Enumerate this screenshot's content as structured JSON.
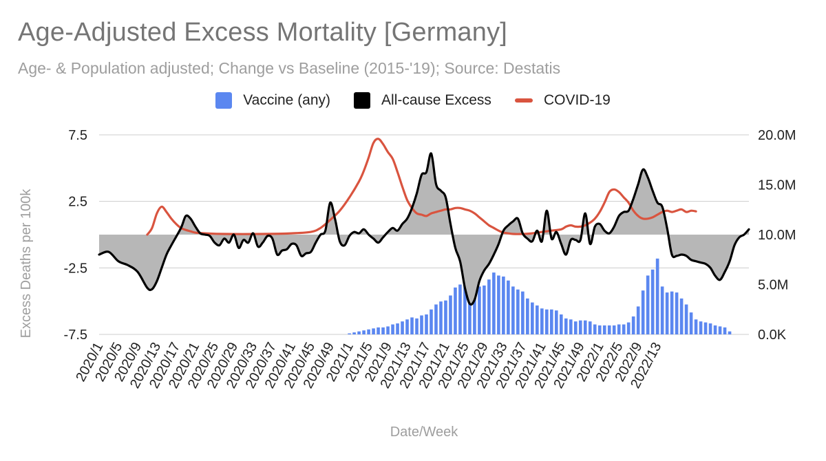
{
  "title": "Age-Adjusted Excess Mortality [Germany]",
  "subtitle": "Age- & Population adjusted; Change vs Baseline (2015-'19); Source: Destatis",
  "legend": [
    {
      "label": "Vaccine (any)",
      "color": "#5b87f0",
      "kind": "box"
    },
    {
      "label": "All-cause Excess",
      "color": "#000000",
      "kind": "box"
    },
    {
      "label": "COVID-19",
      "color": "#d9543f",
      "kind": "line"
    }
  ],
  "chart_data": {
    "type": "combo",
    "title": "Age-Adjusted Excess Mortality [Germany]",
    "xlabel": "Date/Week",
    "ylabel_left": "Excess Deaths per 100k",
    "ylabel_right": "",
    "ylim_left": [
      -7.5,
      7.5
    ],
    "ylim_right": [
      0,
      20000000
    ],
    "yticks_left": [
      "7.5",
      "2.5",
      "-2.5",
      "-7.5"
    ],
    "yticks_right": [
      "20.0M",
      "15.0M",
      "10.0M",
      "5.0M",
      "0.0K"
    ],
    "weeks": 118,
    "xtick_labels": [
      "2020/1",
      "2020/5",
      "2020/9",
      "2020/13",
      "2020/17",
      "2020/21",
      "2020/25",
      "2020/29",
      "2020/33",
      "2020/37",
      "2020/41",
      "2020/45",
      "2020/49",
      "2021/1",
      "2021/5",
      "2021/9",
      "2021/13",
      "2021/17",
      "2021/21",
      "2021/25",
      "2021/29",
      "2021/33",
      "2021/37",
      "2021/41",
      "2021/45",
      "2021/49",
      "2022/1",
      "2022/5",
      "2022/9",
      "2022/13"
    ],
    "series": [
      {
        "name": "All-cause Excess",
        "type": "area-line",
        "axis": "left",
        "color": "#000000",
        "fill": "#b7b7b7",
        "points": [
          [
            0,
            -1.5
          ],
          [
            2,
            -1.3
          ],
          [
            4,
            -2
          ],
          [
            6,
            -2.3
          ],
          [
            8,
            -2.8
          ],
          [
            10,
            -4
          ],
          [
            11,
            -4.1
          ],
          [
            12,
            -3.5
          ],
          [
            13,
            -2.5
          ],
          [
            14,
            -1.5
          ],
          [
            15,
            -0.8
          ],
          [
            17,
            0.5
          ],
          [
            18,
            1.4
          ],
          [
            19,
            1.2
          ],
          [
            20,
            0.6
          ],
          [
            21,
            0.1
          ],
          [
            22,
            0
          ],
          [
            23,
            -0.1
          ],
          [
            24,
            -0.6
          ],
          [
            25,
            -0.8
          ],
          [
            26,
            -0.3
          ],
          [
            27,
            -0.6
          ],
          [
            28,
            0
          ],
          [
            29,
            -1
          ],
          [
            30,
            -0.4
          ],
          [
            31,
            -0.6
          ],
          [
            32,
            0.1
          ],
          [
            33,
            -0.9
          ],
          [
            34,
            -0.6
          ],
          [
            35,
            -0.1
          ],
          [
            36,
            -0.3
          ],
          [
            37,
            -1.5
          ],
          [
            38,
            -1.2
          ],
          [
            39,
            -1.1
          ],
          [
            40,
            -0.7
          ],
          [
            41,
            -0.8
          ],
          [
            42,
            -1.6
          ],
          [
            43,
            -1.4
          ],
          [
            44,
            -1.3
          ],
          [
            45,
            -0.6
          ],
          [
            46,
            0
          ],
          [
            47,
            0.3
          ],
          [
            48,
            2.4
          ],
          [
            49,
            1.2
          ],
          [
            50,
            -0.5
          ],
          [
            51,
            -0.8
          ],
          [
            52,
            -0.1
          ],
          [
            53,
            0.2
          ],
          [
            54,
            0.1
          ],
          [
            55,
            0.4
          ],
          [
            56,
            0
          ],
          [
            57,
            -0.3
          ],
          [
            58,
            -0.6
          ],
          [
            59,
            -0.2
          ],
          [
            60,
            0.2
          ],
          [
            61,
            0.5
          ],
          [
            62,
            0.3
          ],
          [
            63,
            0.8
          ],
          [
            64,
            1.2
          ],
          [
            65,
            2
          ],
          [
            66,
            3.1
          ],
          [
            67,
            4.5
          ],
          [
            68,
            4.7
          ],
          [
            69,
            6.1
          ],
          [
            70,
            3.8
          ],
          [
            71,
            3.3
          ],
          [
            72,
            2.8
          ],
          [
            73,
            0.8
          ],
          [
            74,
            -1
          ],
          [
            75,
            -2
          ],
          [
            76,
            -4
          ],
          [
            77,
            -5.2
          ],
          [
            78,
            -4.9
          ],
          [
            79,
            -3.5
          ],
          [
            80,
            -2.7
          ],
          [
            81,
            -2.2
          ],
          [
            82,
            -1.5
          ],
          [
            83,
            -0.7
          ],
          [
            84,
            0.3
          ],
          [
            85,
            0.7
          ],
          [
            86,
            1
          ],
          [
            87,
            1.2
          ],
          [
            88,
            0.1
          ],
          [
            89,
            -0.3
          ],
          [
            90,
            -0.5
          ],
          [
            91,
            0.3
          ],
          [
            92,
            -0.5
          ],
          [
            93,
            1.8
          ],
          [
            94,
            -0.3
          ],
          [
            95,
            0.2
          ],
          [
            96,
            -0.7
          ],
          [
            97,
            -1.5
          ],
          [
            98,
            -0.4
          ],
          [
            99,
            -0.4
          ],
          [
            100,
            -0.4
          ],
          [
            101,
            1.6
          ],
          [
            102,
            -0.7
          ],
          [
            103,
            0.6
          ],
          [
            104,
            0.8
          ],
          [
            105,
            0.3
          ],
          [
            106,
            0.1
          ],
          [
            107,
            0.6
          ],
          [
            108,
            1.4
          ],
          [
            109,
            1.7
          ],
          [
            110,
            1.8
          ],
          [
            111,
            2.7
          ],
          [
            112,
            3.8
          ],
          [
            113,
            4.9
          ],
          [
            114,
            4.3
          ],
          [
            115,
            3.3
          ],
          [
            116,
            2.4
          ],
          [
            117,
            2.1
          ],
          [
            118,
            0.5
          ],
          [
            119,
            -1.5
          ],
          [
            120,
            -1.6
          ],
          [
            121,
            -1.5
          ],
          [
            122,
            -1.6
          ],
          [
            123,
            -1.9
          ],
          [
            124,
            -2
          ],
          [
            125,
            -2.1
          ],
          [
            126,
            -2.2
          ],
          [
            127,
            -2.5
          ],
          [
            128,
            -3.1
          ],
          [
            129,
            -3.4
          ],
          [
            130,
            -2.8
          ],
          [
            131,
            -2
          ],
          [
            132,
            -0.8
          ],
          [
            133,
            -0.2
          ],
          [
            134,
            0
          ],
          [
            135,
            0.4
          ]
        ]
      },
      {
        "name": "COVID-19",
        "type": "line",
        "axis": "left",
        "color": "#d9543f",
        "points": [
          [
            10,
            0
          ],
          [
            11,
            0.5
          ],
          [
            12,
            1.6
          ],
          [
            13,
            2.1
          ],
          [
            14,
            1.7
          ],
          [
            15,
            1.2
          ],
          [
            16,
            0.8
          ],
          [
            17,
            0.5
          ],
          [
            18,
            0.35
          ],
          [
            19,
            0.25
          ],
          [
            20,
            0.15
          ],
          [
            22,
            0.1
          ],
          [
            26,
            0.05
          ],
          [
            34,
            0.05
          ],
          [
            40,
            0.1
          ],
          [
            44,
            0.2
          ],
          [
            46,
            0.5
          ],
          [
            48,
            1.1
          ],
          [
            50,
            1.8
          ],
          [
            52,
            2.8
          ],
          [
            54,
            4
          ],
          [
            55,
            4.8
          ],
          [
            56,
            5.8
          ],
          [
            57,
            6.9
          ],
          [
            58,
            7.2
          ],
          [
            59,
            6.8
          ],
          [
            60,
            6.2
          ],
          [
            61,
            5.7
          ],
          [
            62,
            4.7
          ],
          [
            63,
            3.6
          ],
          [
            64,
            2.6
          ],
          [
            65,
            2
          ],
          [
            66,
            1.6
          ],
          [
            67,
            1.5
          ],
          [
            68,
            1.4
          ],
          [
            69,
            1.6
          ],
          [
            70,
            1.7
          ],
          [
            71,
            1.8
          ],
          [
            72,
            1.9
          ],
          [
            73,
            1.9
          ],
          [
            74,
            2
          ],
          [
            75,
            2
          ],
          [
            76,
            1.9
          ],
          [
            77,
            1.8
          ],
          [
            78,
            1.6
          ],
          [
            79,
            1.3
          ],
          [
            80,
            1
          ],
          [
            81,
            0.7
          ],
          [
            82,
            0.5
          ],
          [
            83,
            0.3
          ],
          [
            84,
            0.15
          ],
          [
            85,
            0.1
          ],
          [
            86,
            0.05
          ],
          [
            88,
            0.05
          ],
          [
            90,
            0.1
          ],
          [
            92,
            0.2
          ],
          [
            94,
            0.3
          ],
          [
            96,
            0.4
          ],
          [
            97,
            0.6
          ],
          [
            98,
            0.7
          ],
          [
            99,
            0.6
          ],
          [
            100,
            0.6
          ],
          [
            101,
            0.7
          ],
          [
            102,
            0.9
          ],
          [
            103,
            1.2
          ],
          [
            104,
            1.7
          ],
          [
            105,
            2.4
          ],
          [
            106,
            3.2
          ],
          [
            107,
            3.4
          ],
          [
            108,
            3.2
          ],
          [
            109,
            2.8
          ],
          [
            110,
            2.4
          ],
          [
            111,
            1.8
          ],
          [
            112,
            1.4
          ],
          [
            113,
            1.2
          ],
          [
            114,
            1.2
          ],
          [
            115,
            1.3
          ],
          [
            116,
            1.5
          ],
          [
            117,
            1.7
          ],
          [
            118,
            1.8
          ],
          [
            119,
            1.7
          ],
          [
            120,
            1.8
          ],
          [
            121,
            1.9
          ],
          [
            122,
            1.7
          ],
          [
            123,
            1.8
          ],
          [
            124,
            1.75
          ]
        ]
      },
      {
        "name": "Vaccine (any)",
        "type": "bar",
        "axis": "right",
        "color": "#5b87f0",
        "start_week": 52,
        "values": [
          100000,
          200000,
          300000,
          400000,
          500000,
          600000,
          700000,
          700000,
          800000,
          1000000,
          1100000,
          1300000,
          1500000,
          1700000,
          1600000,
          1900000,
          2000000,
          2500000,
          3000000,
          3300000,
          3400000,
          3900000,
          4700000,
          5000000,
          5000000,
          5100000,
          5000000,
          4800000,
          4900000,
          5500000,
          6200000,
          5900000,
          5800000,
          5400000,
          4800000,
          4500000,
          4300000,
          3600000,
          3200000,
          2900000,
          2600000,
          2500000,
          2500000,
          2400000,
          2000000,
          1600000,
          1500000,
          1300000,
          1400000,
          1400000,
          1300000,
          1000000,
          900000,
          900000,
          900000,
          900000,
          1000000,
          1000000,
          1200000,
          1800000,
          2800000,
          4400000,
          5900000,
          6500000,
          7600000,
          4800000,
          4200000,
          4300000,
          4200000,
          3600000,
          3000000,
          2200000,
          1500000,
          1300000,
          1200000,
          1100000,
          900000,
          800000,
          700000,
          300000
        ]
      }
    ]
  }
}
